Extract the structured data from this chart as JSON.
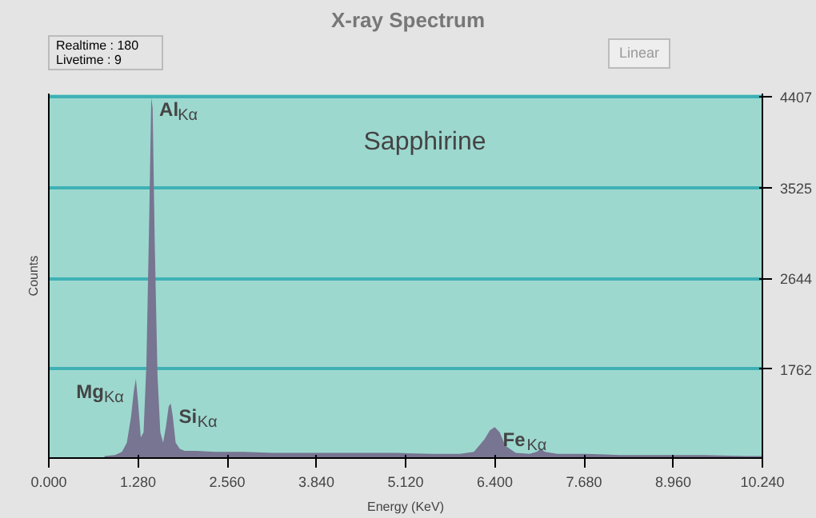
{
  "chart_data": {
    "type": "area",
    "title": "X-ray Spectrum",
    "subtitle": "Sapphirine",
    "xlabel": "Energy (KeV)",
    "ylabel": "Counts",
    "annotations": [
      "Realtime : 180",
      "Livetime : 9",
      "Linear",
      {
        "text": "Al$_{Kα}$",
        "x": 1.47,
        "y": 4407
      },
      {
        "text": "Mg$_{Kα}$",
        "x": 1.25,
        "y": 1670
      },
      {
        "text": "Si$_{Kα}$",
        "x": 1.75,
        "y": 1430
      },
      {
        "text": "Fe$_{Kα}$",
        "x": 6.4,
        "y": 1200
      }
    ],
    "x": [
      0.8,
      0.95,
      1.05,
      1.12,
      1.18,
      1.22,
      1.25,
      1.28,
      1.32,
      1.36,
      1.4,
      1.44,
      1.47,
      1.49,
      1.52,
      1.56,
      1.6,
      1.64,
      1.68,
      1.72,
      1.75,
      1.78,
      1.82,
      1.88,
      1.95,
      2.1,
      2.4,
      2.8,
      3.2,
      3.6,
      4.0,
      4.5,
      5.0,
      5.5,
      5.9,
      6.1,
      6.25,
      6.33,
      6.4,
      6.47,
      6.55,
      6.7,
      6.9,
      7.0,
      7.06,
      7.12,
      7.3,
      7.7,
      8.2,
      8.8,
      9.4,
      10.0,
      10.24
    ],
    "series": [
      {
        "color": "#777591",
        "values": [
          920,
          930,
          960,
          1050,
          1300,
          1550,
          1670,
          1450,
          1100,
          1150,
          1800,
          3200,
          4400,
          4300,
          3000,
          1700,
          1150,
          1050,
          1200,
          1400,
          1430,
          1300,
          1050,
          990,
          970,
          970,
          960,
          960,
          950,
          950,
          950,
          950,
          950,
          940,
          940,
          960,
          1080,
          1170,
          1200,
          1150,
          1020,
          950,
          940,
          960,
          990,
          960,
          940,
          940,
          930,
          930,
          930,
          920,
          920
        ]
      }
    ],
    "xlim": [
      0,
      10.24
    ],
    "ylim": [
      900,
      4440
    ],
    "xticks": [
      {
        "value": 0,
        "label": "0.000"
      },
      {
        "value": 1.28,
        "label": "1.280"
      },
      {
        "value": 2.56,
        "label": "2.560"
      },
      {
        "value": 3.84,
        "label": "3.840"
      },
      {
        "value": 5.12,
        "label": "5.120"
      },
      {
        "value": 6.4,
        "label": "6.400"
      },
      {
        "value": 7.68,
        "label": "7.680"
      },
      {
        "value": 8.96,
        "label": "8.960"
      },
      {
        "value": 10.24,
        "label": "10.240"
      }
    ],
    "yticks": [
      1762,
      2644,
      3525,
      4407
    ],
    "grid": "y"
  }
}
